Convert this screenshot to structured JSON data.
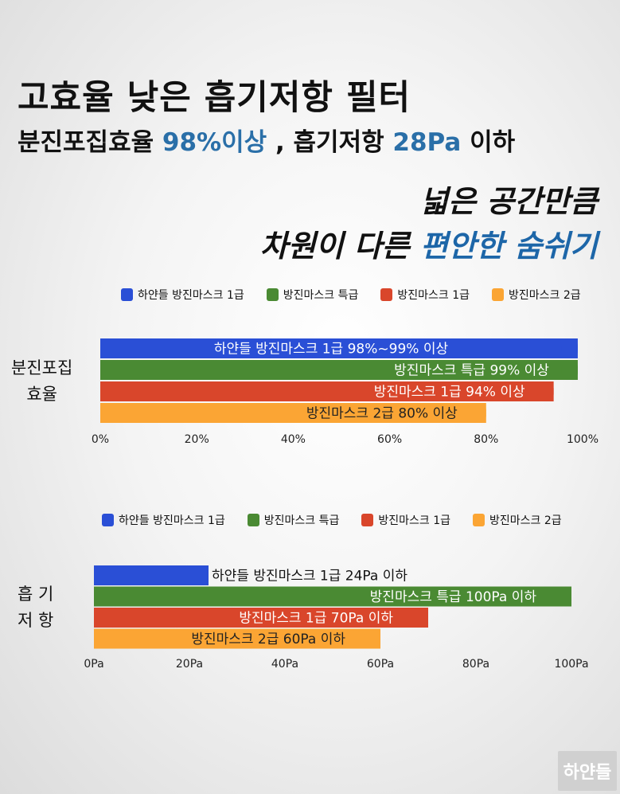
{
  "header": {
    "title": "고효율 낮은 흡기저항 필터",
    "sub_a": "분진포집효율 ",
    "sub_b": "98%이상",
    "sub_c": " , 흡기저항 ",
    "sub_d": "28Pa",
    "sub_e": " 이하"
  },
  "slogan": {
    "line1": "넓은 공간만큼",
    "line2a": "차원이 다른 ",
    "line2b": "편안한 숨쉬기"
  },
  "colors": {
    "blue": "#2a4fd6",
    "green": "#4a8a33",
    "red": "#d9462b",
    "orange": "#fba534",
    "accent": "#1d66a8"
  },
  "legend": [
    "하얀들 방진마스크 1급",
    "방진마스크 특급",
    "방진마스크 1급",
    "방진마스크 2급"
  ],
  "chart1_label": {
    "line1": "분진포집",
    "line2": "효율"
  },
  "chart2_label": {
    "line1": "흡 기",
    "line2": "저 항"
  },
  "logo_text": "하얀들",
  "chart_data": [
    {
      "type": "bar",
      "orientation": "horizontal",
      "ylabel": "분진포집 효율",
      "categories": [
        "하얀들 방진마스크 1급",
        "방진마스크 특급",
        "방진마스크 1급",
        "방진마스크 2급"
      ],
      "values": [
        99,
        99,
        94,
        80
      ],
      "data_labels": [
        "하얀들 방진마스크 1급  98%~99% 이상",
        "방진마스크 특급  99% 이상",
        "방진마스크 1급  94% 이상",
        "방진마스크 2급  80% 이상"
      ],
      "xticks": [
        "0%",
        "20%",
        "40%",
        "60%",
        "80%",
        "100%"
      ],
      "xlim": [
        0,
        100
      ],
      "legend_position": "top"
    },
    {
      "type": "bar",
      "orientation": "horizontal",
      "ylabel": "흡 기 저 항",
      "categories": [
        "하얀들 방진마스크 1급",
        "방진마스크 특급",
        "방진마스크 1급",
        "방진마스크 2급"
      ],
      "values": [
        24,
        100,
        70,
        60
      ],
      "data_labels": [
        "하얀들 방진마스크 1급  24Pa 이하",
        "방진마스크 특급  100Pa 이하",
        "방진마스크 1급  70Pa 이하",
        "방진마스크 2급  60Pa 이하"
      ],
      "xticks": [
        "0Pa",
        "20Pa",
        "40Pa",
        "60Pa",
        "80Pa",
        "100Pa"
      ],
      "xlim": [
        0,
        100
      ],
      "legend_position": "top"
    }
  ]
}
